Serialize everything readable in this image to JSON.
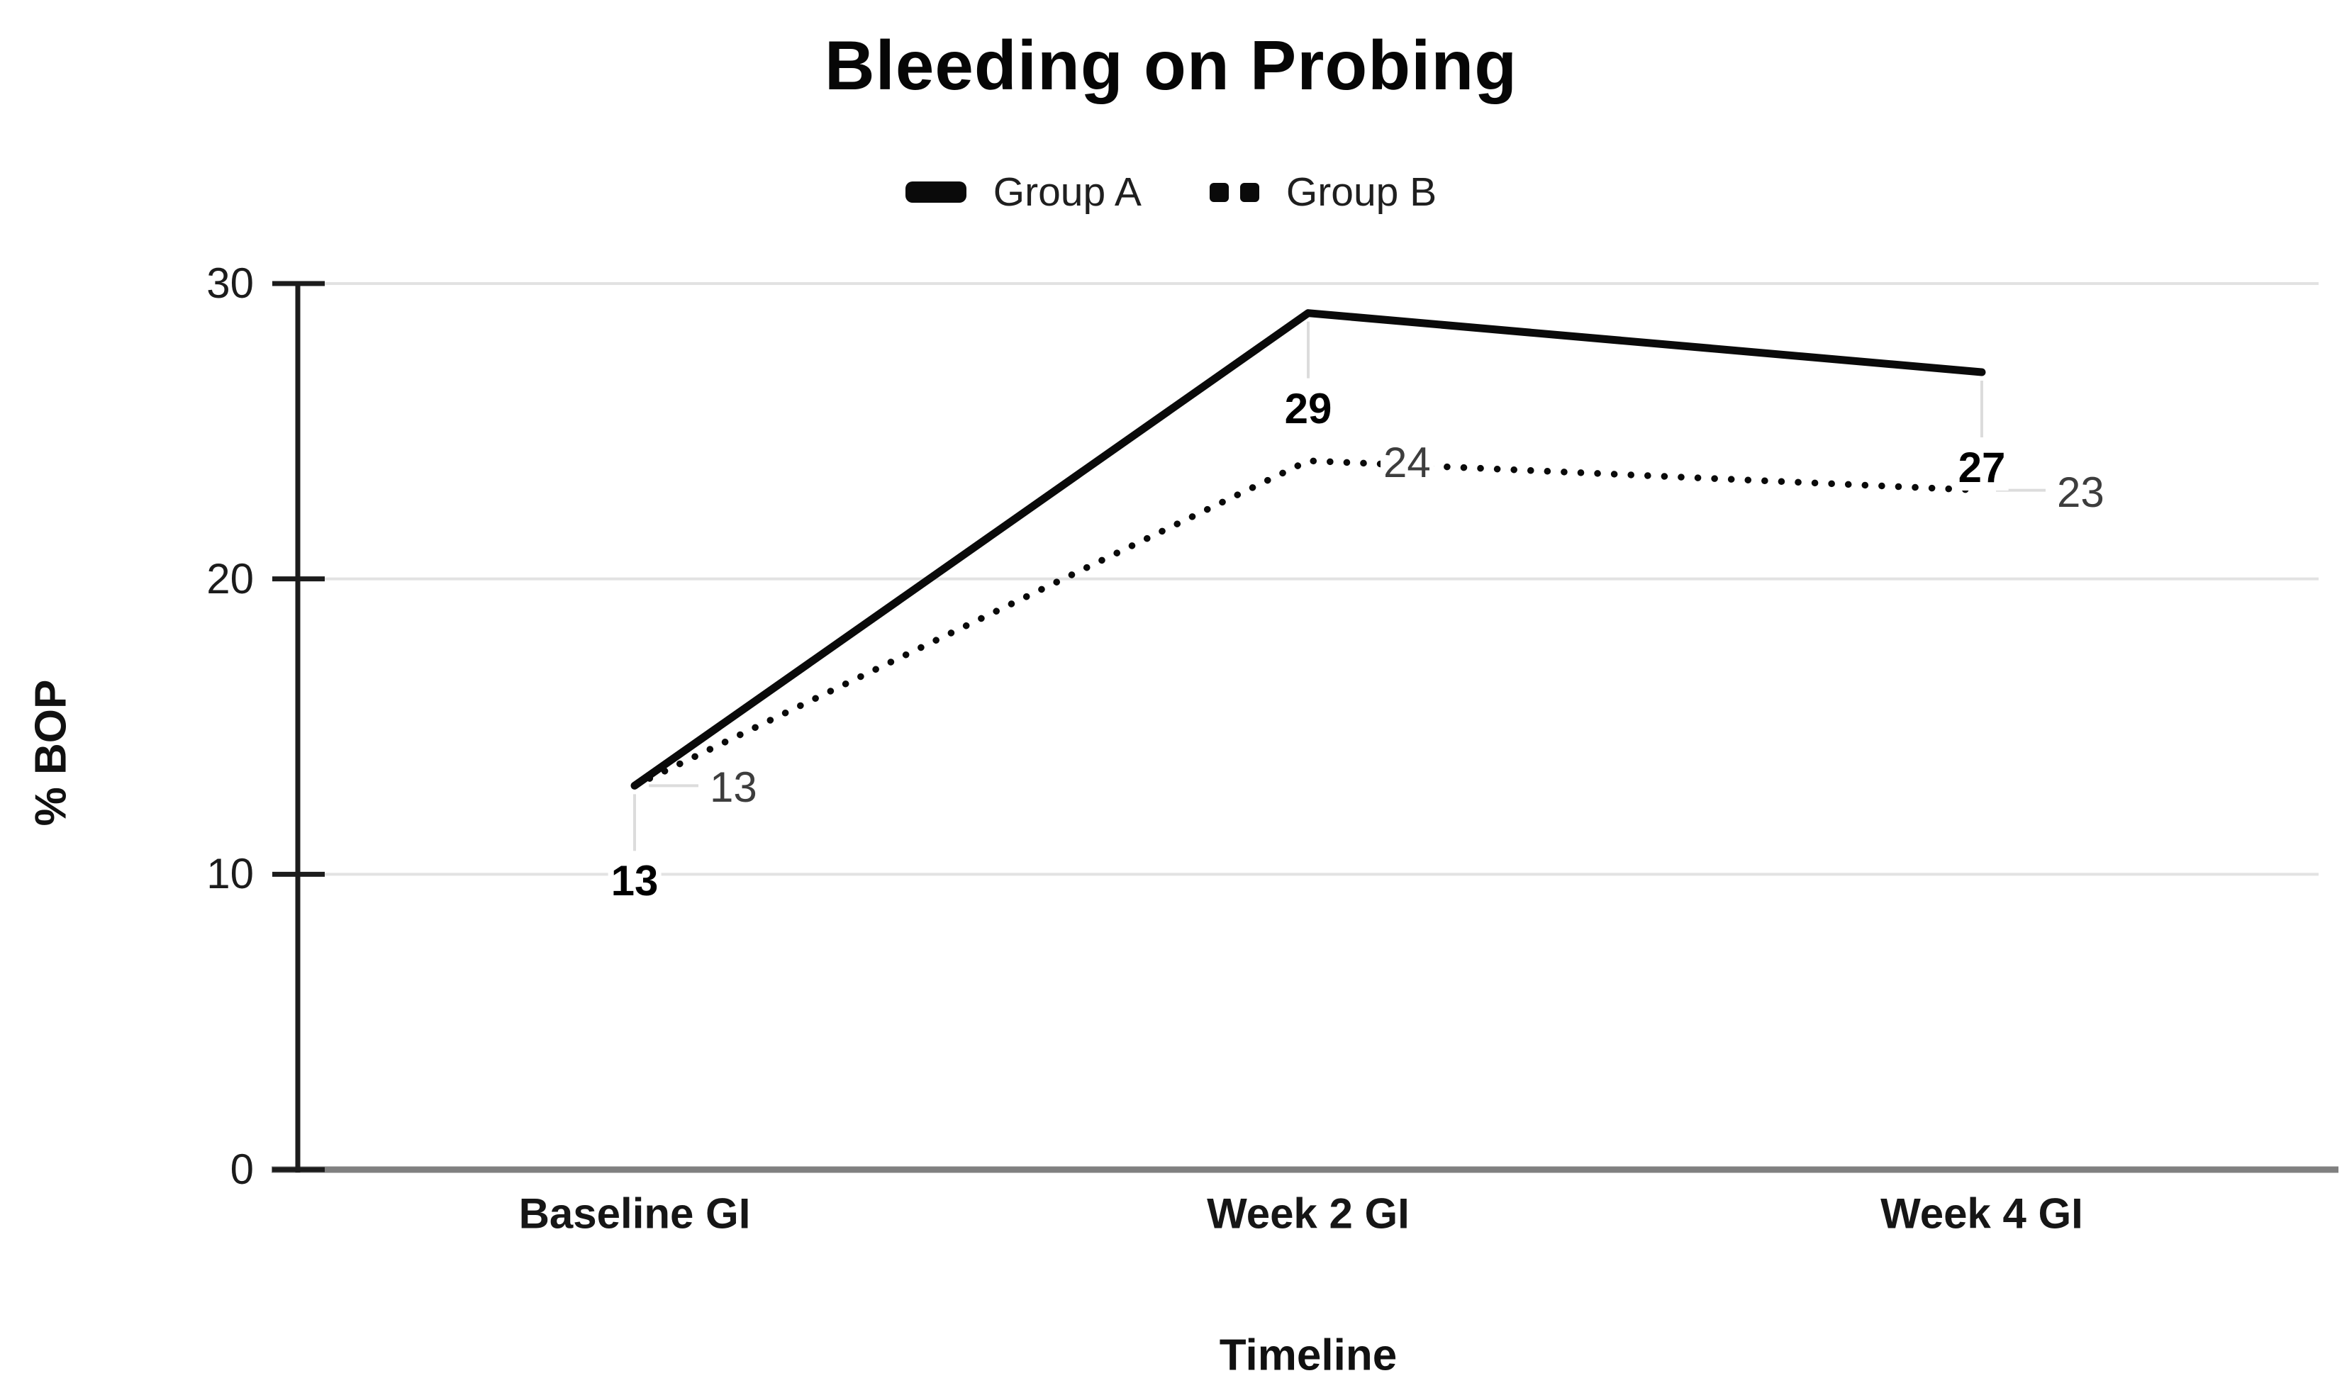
{
  "title": "Bleeding on Probing",
  "chart_data": {
    "type": "line",
    "title": "Bleeding on Probing",
    "categories": [
      "Baseline GI",
      "Week 2 GI",
      "Week 4 GI"
    ],
    "series": [
      {
        "name": "Group A",
        "line_style": "solid",
        "values": [
          13,
          29,
          27
        ],
        "data_labels": [
          "13",
          "29",
          "27"
        ],
        "label_weight": "bold",
        "label_placement": "below",
        "leaders": [
          "down",
          "down",
          "down"
        ]
      },
      {
        "name": "Group B",
        "line_style": "dotted",
        "values": [
          13,
          24,
          23
        ],
        "data_labels": [
          "13",
          "24",
          "23"
        ],
        "label_weight": "regular",
        "label_placement": "right",
        "leaders": [
          "right",
          "none",
          "right"
        ]
      }
    ],
    "xlabel": "Timeline",
    "ylabel": "% BOP",
    "yticks": [
      0,
      10,
      20,
      30
    ],
    "ytick_labels": [
      "0",
      "10",
      "20",
      "30"
    ],
    "ylim": [
      0,
      30
    ],
    "grid": true,
    "legend_position": "top"
  },
  "colors": {
    "line": "#0a0a0a",
    "gridline": "#e2e2e2",
    "x_axis": "#808080",
    "y_axis": "#1c1c1c",
    "tick": "#1c1c1c",
    "leader": "#dcdcdc",
    "label_a": "#000000",
    "label_b": "#3d3d3d"
  }
}
